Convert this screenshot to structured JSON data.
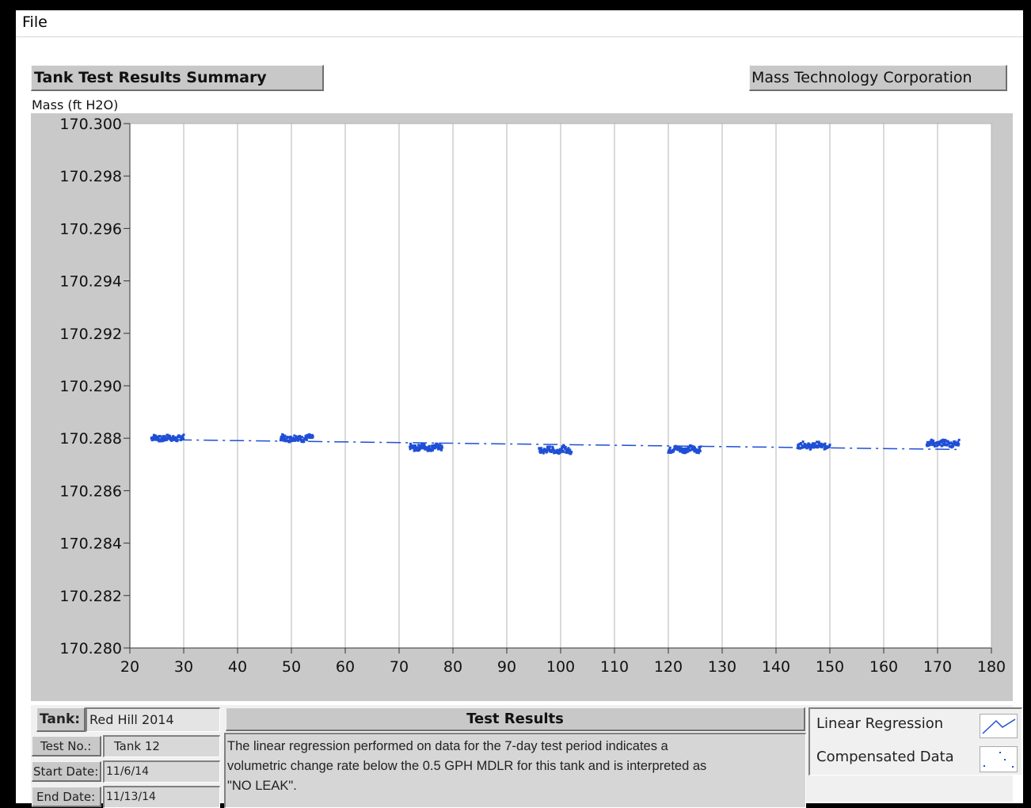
{
  "menu": {
    "file": "File"
  },
  "header": {
    "title": "Tank Test Results Summary",
    "company": "Mass Technology Corporation"
  },
  "chart_data": {
    "type": "scatter",
    "title": "",
    "xlabel": "",
    "ylabel": "Mass (ft H2O)",
    "xlim": [
      20,
      180
    ],
    "ylim": [
      170.28,
      170.3
    ],
    "x_ticks": [
      20,
      30,
      40,
      50,
      60,
      70,
      80,
      90,
      100,
      110,
      120,
      130,
      140,
      150,
      160,
      170,
      180
    ],
    "y_ticks": [
      "170.280",
      "170.282",
      "170.284",
      "170.286",
      "170.288",
      "170.290",
      "170.292",
      "170.294",
      "170.296",
      "170.298",
      "170.300"
    ],
    "grid": "vertical",
    "color": "#1f4fd6",
    "series": [
      {
        "name": "Compensated Data",
        "style": "points",
        "clusters": [
          {
            "x_start": 24,
            "x_end": 30,
            "y_mean": 170.288
          },
          {
            "x_start": 48,
            "x_end": 54,
            "y_mean": 170.288
          },
          {
            "x_start": 72,
            "x_end": 78,
            "y_mean": 170.28765
          },
          {
            "x_start": 96,
            "x_end": 102,
            "y_mean": 170.28755
          },
          {
            "x_start": 120,
            "x_end": 126,
            "y_mean": 170.28758
          },
          {
            "x_start": 144,
            "x_end": 150,
            "y_mean": 170.28772
          },
          {
            "x_start": 168,
            "x_end": 174,
            "y_mean": 170.2878
          }
        ]
      },
      {
        "name": "Linear Regression",
        "style": "dash-dot",
        "x": [
          24,
          174
        ],
        "y": [
          170.28795,
          170.28757
        ]
      }
    ]
  },
  "info": {
    "tank_label": "Tank:",
    "tank_value": "Red Hill 2014",
    "test_no_label": "Test No.:",
    "test_no_value": "Tank 12",
    "start_label": "Start Date:",
    "start_value": "11/6/14",
    "end_label": "End Date:",
    "end_value": "11/13/14"
  },
  "results": {
    "header": "Test Results",
    "line1": "The linear regression performed on data for the 7-day test period indicates a",
    "line2": "volumetric change rate below the 0.5 GPH MDLR for this tank and is interpreted as",
    "line3": "\"NO LEAK\"."
  },
  "legend": {
    "regression": "Linear Regression",
    "compensated": "Compensated Data"
  }
}
